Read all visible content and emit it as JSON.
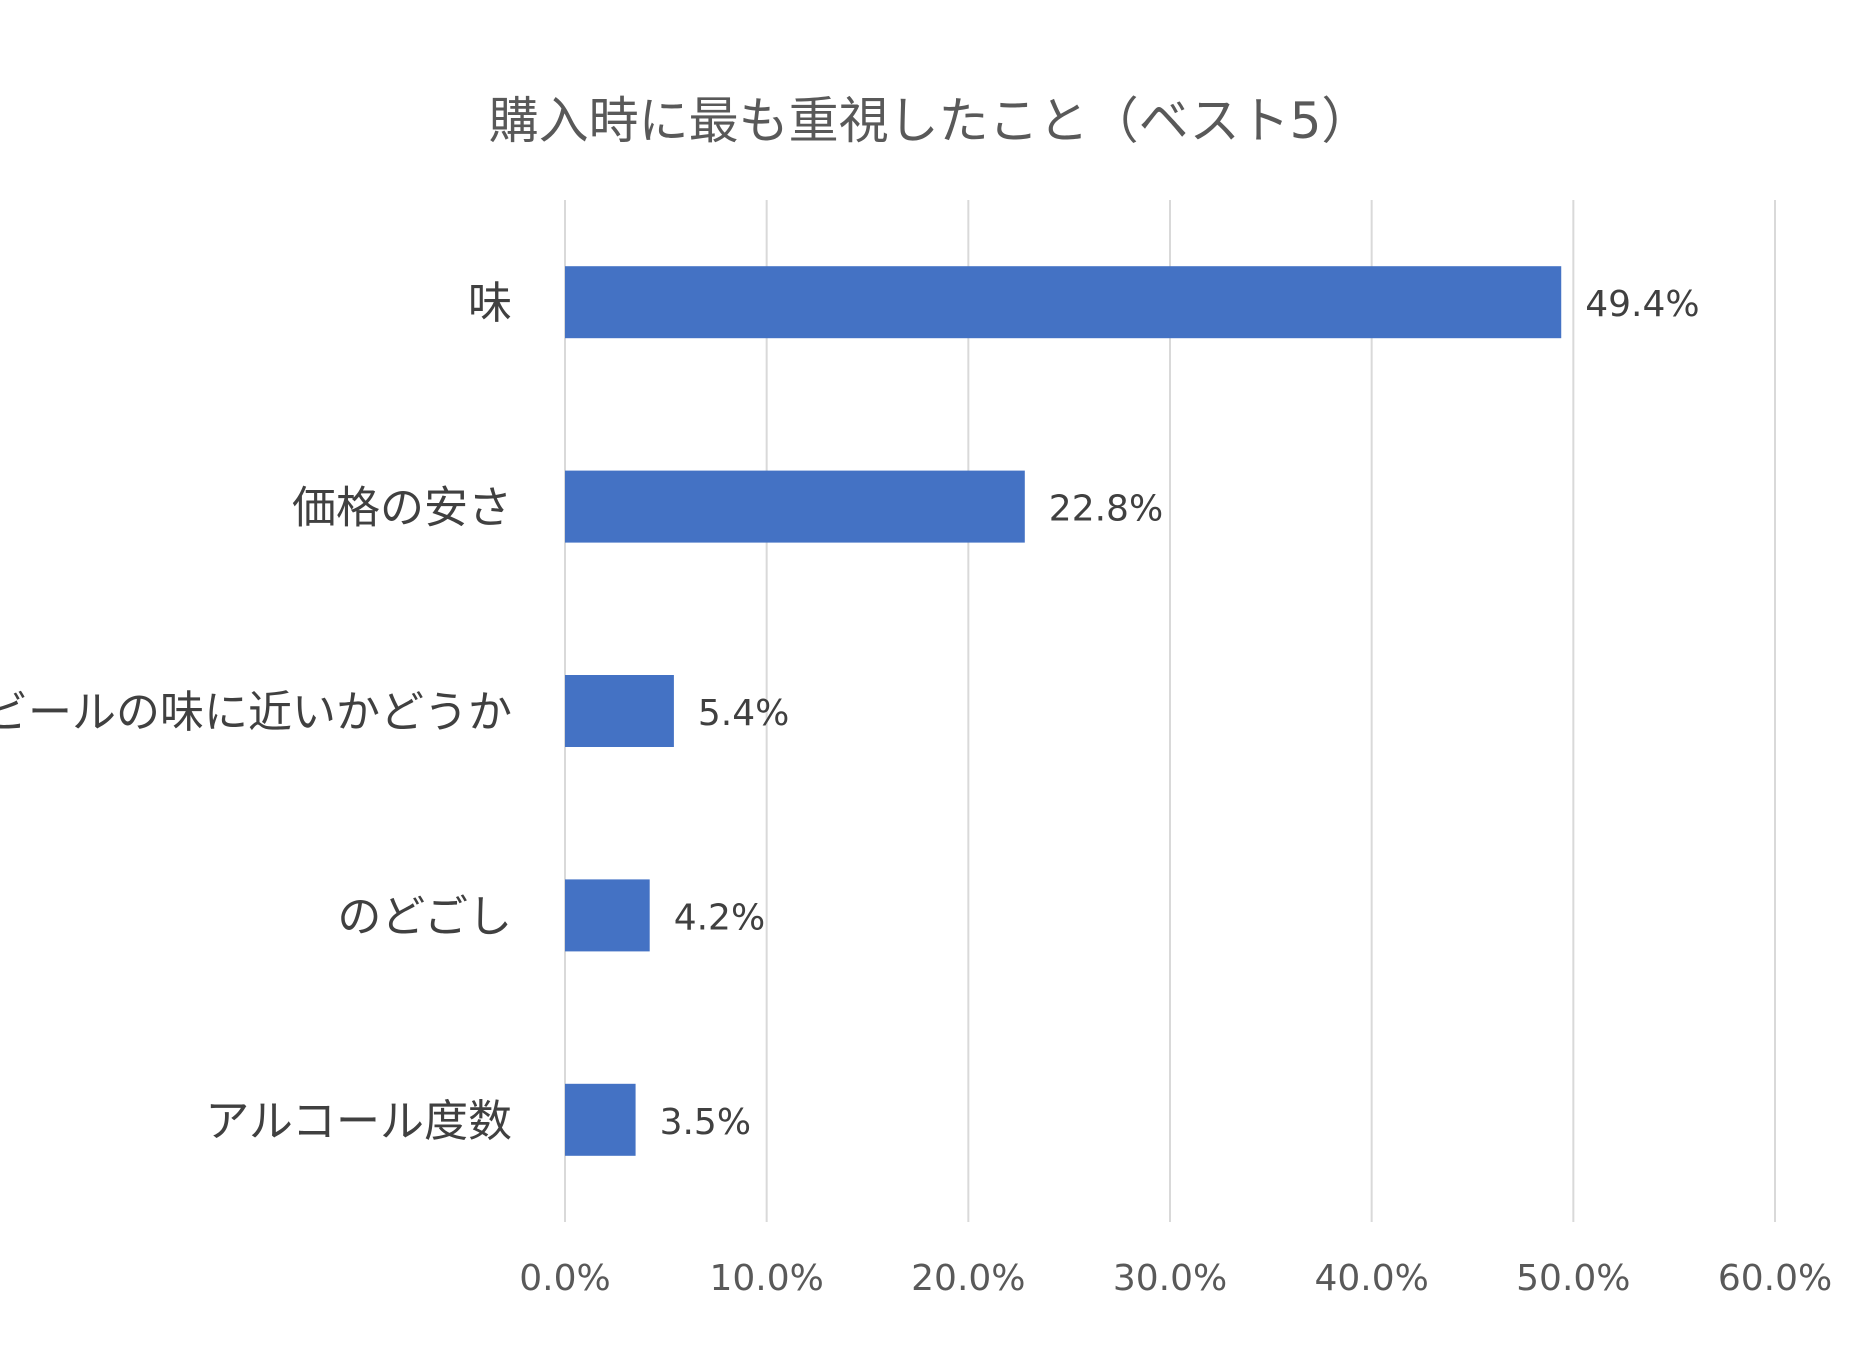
{
  "chart_data": {
    "type": "bar",
    "orientation": "horizontal",
    "title": "購入時に最も重視したこと（ベスト5）",
    "categories": [
      "味",
      "価格の安さ",
      "ビールの味に近いかどうか",
      "のどごし",
      "アルコール度数"
    ],
    "values": [
      49.4,
      22.8,
      5.4,
      4.2,
      3.5
    ],
    "value_labels": [
      "49.4%",
      "22.8%",
      "5.4%",
      "4.2%",
      "3.5%"
    ],
    "xlim": [
      0,
      60
    ],
    "ticks": [
      0,
      10,
      20,
      30,
      40,
      50,
      60
    ],
    "tick_labels": [
      "0.0%",
      "10.0%",
      "20.0%",
      "30.0%",
      "40.0%",
      "50.0%",
      "60.0%"
    ],
    "grid": true,
    "legend": "none",
    "colors": {
      "bar": "#4472C4",
      "grid": "#D9D9D9"
    }
  }
}
